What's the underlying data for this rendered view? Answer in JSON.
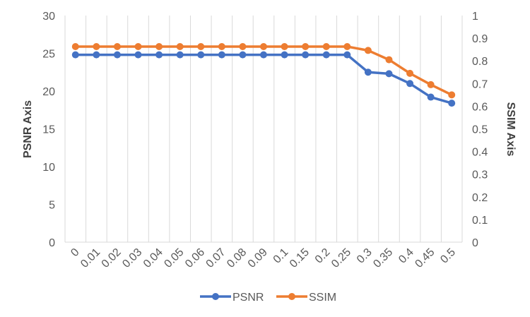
{
  "chart_data": {
    "type": "line",
    "categories": [
      "0",
      "0.01",
      "0.02",
      "0.03",
      "0.04",
      "0.05",
      "0.06",
      "0.07",
      "0.08",
      "0.09",
      "0.1",
      "0.15",
      "0.2",
      "0.25",
      "0.3",
      "0.35",
      "0.4",
      "0.45",
      "0.5"
    ],
    "series": [
      {
        "name": "PSNR",
        "axis": "left",
        "color": "#4472C4",
        "values": [
          24.8,
          24.8,
          24.8,
          24.8,
          24.8,
          24.8,
          24.8,
          24.8,
          24.8,
          24.8,
          24.8,
          24.8,
          24.8,
          24.8,
          22.5,
          22.3,
          21.0,
          19.2,
          18.4
        ]
      },
      {
        "name": "SSIM",
        "axis": "right",
        "color": "#ED7D31",
        "values": [
          0.863,
          0.863,
          0.863,
          0.863,
          0.863,
          0.863,
          0.863,
          0.863,
          0.863,
          0.863,
          0.863,
          0.863,
          0.863,
          0.863,
          0.846,
          0.805,
          0.745,
          0.695,
          0.65
        ]
      }
    ],
    "ylabel": "PSNR Axis",
    "ylabel_right": "SSIM Axis",
    "ylim": [
      0,
      30
    ],
    "yticks": [
      0,
      5,
      10,
      15,
      20,
      25,
      30
    ],
    "ylim_right": [
      0,
      1
    ],
    "yticks_right": [
      "0",
      "0.1",
      "0.2",
      "0.3",
      "0.4",
      "0.5",
      "0.6",
      "0.7",
      "0.8",
      "0.9",
      "1"
    ],
    "grid": "vertical",
    "legend": "bottom"
  }
}
